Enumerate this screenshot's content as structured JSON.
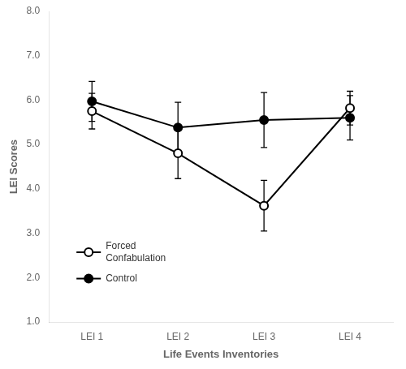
{
  "chart_data": {
    "type": "line",
    "xlabel": "Life Events Inventories",
    "ylabel": "LEI Scores",
    "categories": [
      "LEI 1",
      "LEI 2",
      "LEI 3",
      "LEI 4"
    ],
    "series": [
      {
        "name": "Forced\nConfabulation",
        "color": "black",
        "marker": "open_circle",
        "line_style": "solid",
        "values": [
          5.75,
          4.8,
          3.62,
          5.82
        ],
        "errors": [
          0.4,
          0.57,
          0.57,
          0.38
        ]
      },
      {
        "name": "Control",
        "color": "black",
        "marker": "circle",
        "line_style": "solid",
        "values": [
          5.97,
          5.38,
          5.55,
          5.6
        ],
        "errors": [
          0.45,
          0.57,
          0.62,
          0.5
        ]
      }
    ],
    "ylim": [
      1.0,
      8.0
    ],
    "yticks": [
      {
        "value": 1.0,
        "label": "1.0"
      },
      {
        "value": 2.0,
        "label": "2.0"
      },
      {
        "value": 3.0,
        "label": "3.0"
      },
      {
        "value": 4.0,
        "label": "4.0"
      },
      {
        "value": 5.0,
        "label": "5.0"
      },
      {
        "value": 6.0,
        "label": "6.0"
      },
      {
        "value": 7.0,
        "label": "7.0"
      },
      {
        "value": 8.0,
        "label": "8.0"
      }
    ],
    "grid": false,
    "legend": "lower left"
  }
}
